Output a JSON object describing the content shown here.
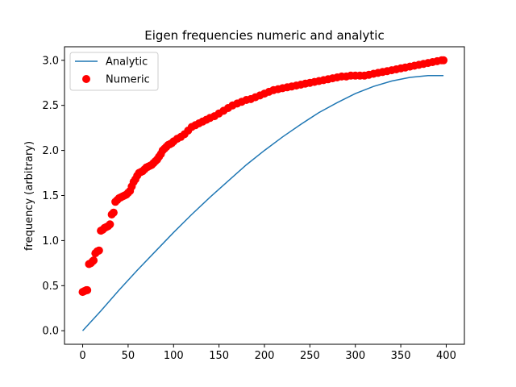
{
  "chart_data": {
    "type": "line",
    "title": "Eigen frequencies numeric and analytic",
    "xlabel": "",
    "ylabel": "frequency (arbitrary)",
    "xlim": [
      -20,
      420
    ],
    "ylim": [
      -0.15,
      3.15
    ],
    "xticks": [
      0,
      50,
      100,
      150,
      200,
      250,
      300,
      350,
      400
    ],
    "yticks": [
      0.0,
      0.5,
      1.0,
      1.5,
      2.0,
      2.5,
      3.0
    ],
    "xtick_labels": [
      "0",
      "50",
      "100",
      "150",
      "200",
      "250",
      "300",
      "350",
      "400"
    ],
    "ytick_labels": [
      "0.0",
      "0.5",
      "1.0",
      "1.5",
      "2.0",
      "2.5",
      "3.0"
    ],
    "grid": false,
    "legend_position": "top-left",
    "series": [
      {
        "name": "Analytic",
        "style": "line",
        "color": "#1f77b4",
        "x": [
          0,
          20,
          40,
          60,
          80,
          100,
          120,
          140,
          160,
          180,
          200,
          220,
          240,
          260,
          280,
          300,
          320,
          340,
          360,
          380,
          397
        ],
        "y": [
          0.0,
          0.22,
          0.45,
          0.67,
          0.88,
          1.09,
          1.29,
          1.48,
          1.66,
          1.84,
          2.0,
          2.15,
          2.29,
          2.42,
          2.53,
          2.63,
          2.71,
          2.77,
          2.81,
          2.83,
          2.83
        ]
      },
      {
        "name": "Numeric",
        "style": "markers",
        "color": "#ff0000",
        "x": [
          0,
          2,
          4,
          5,
          7,
          9,
          11,
          12,
          14,
          16,
          18,
          20,
          22,
          24,
          26,
          28,
          30,
          32,
          34,
          36,
          38,
          40,
          42,
          44,
          46,
          48,
          50,
          52,
          54,
          56,
          58,
          60,
          62,
          64,
          66,
          68,
          70,
          72,
          74,
          76,
          78,
          80,
          82,
          84,
          86,
          88,
          90,
          92,
          94,
          96,
          98,
          100,
          104,
          108,
          112,
          116,
          120,
          124,
          128,
          132,
          136,
          140,
          145,
          150,
          155,
          160,
          165,
          170,
          175,
          180,
          185,
          190,
          195,
          200,
          205,
          210,
          215,
          220,
          225,
          230,
          235,
          240,
          245,
          250,
          255,
          260,
          265,
          270,
          275,
          280,
          285,
          290,
          295,
          300,
          305,
          310,
          315,
          320,
          325,
          330,
          335,
          340,
          345,
          350,
          355,
          360,
          365,
          370,
          375,
          380,
          385,
          390,
          395,
          397
        ],
        "y": [
          0.43,
          0.44,
          0.45,
          0.45,
          0.74,
          0.75,
          0.77,
          0.78,
          0.86,
          0.88,
          0.89,
          1.11,
          1.12,
          1.14,
          1.15,
          1.16,
          1.18,
          1.29,
          1.31,
          1.43,
          1.45,
          1.47,
          1.48,
          1.49,
          1.5,
          1.51,
          1.53,
          1.55,
          1.6,
          1.65,
          1.68,
          1.72,
          1.75,
          1.76,
          1.77,
          1.79,
          1.81,
          1.82,
          1.83,
          1.84,
          1.86,
          1.88,
          1.9,
          1.93,
          1.96,
          2.0,
          2.02,
          2.04,
          2.06,
          2.07,
          2.08,
          2.1,
          2.13,
          2.15,
          2.18,
          2.22,
          2.26,
          2.28,
          2.3,
          2.32,
          2.34,
          2.36,
          2.38,
          2.41,
          2.44,
          2.47,
          2.5,
          2.52,
          2.54,
          2.56,
          2.57,
          2.59,
          2.61,
          2.63,
          2.65,
          2.67,
          2.68,
          2.69,
          2.7,
          2.71,
          2.72,
          2.73,
          2.74,
          2.75,
          2.76,
          2.77,
          2.78,
          2.79,
          2.8,
          2.81,
          2.82,
          2.82,
          2.83,
          2.83,
          2.83,
          2.83,
          2.84,
          2.85,
          2.86,
          2.87,
          2.88,
          2.89,
          2.9,
          2.91,
          2.92,
          2.93,
          2.94,
          2.95,
          2.96,
          2.97,
          2.98,
          2.99,
          3.0,
          3.0
        ]
      }
    ]
  }
}
